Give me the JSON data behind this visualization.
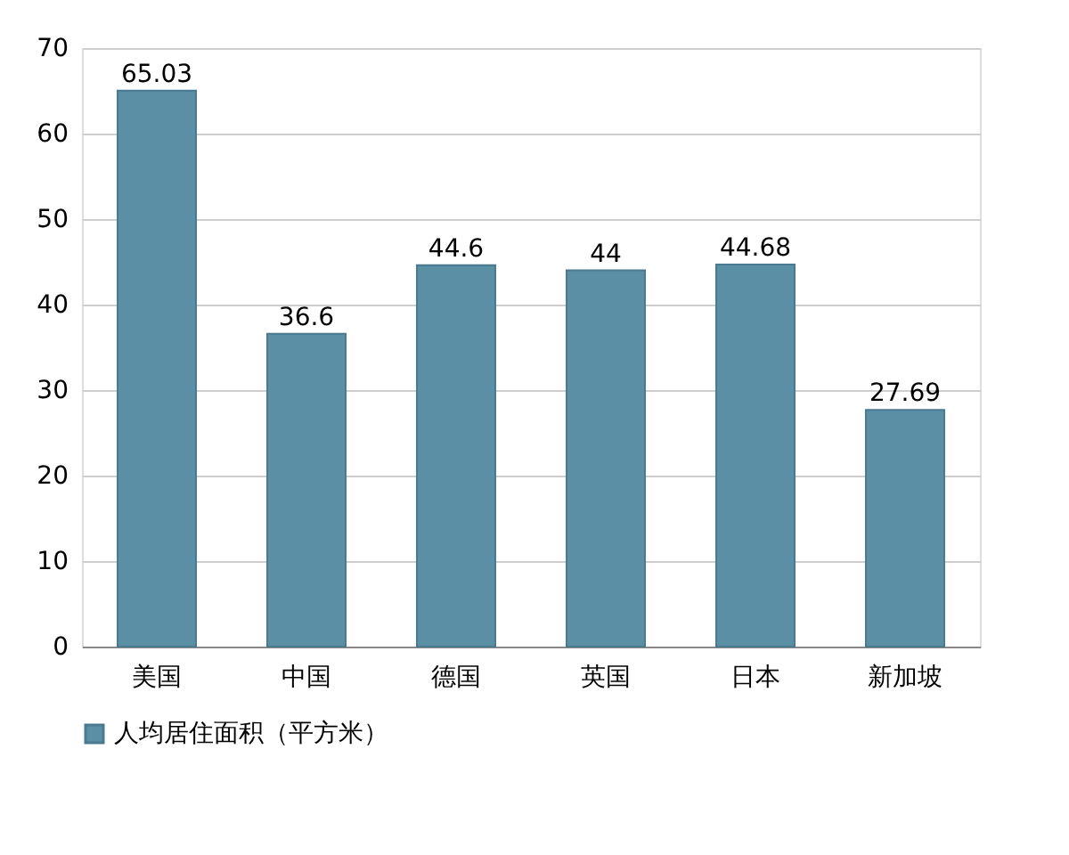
{
  "chart_data": {
    "type": "bar",
    "categories": [
      "美国",
      "中国",
      "德国",
      "英国",
      "日本",
      "新加坡"
    ],
    "series": [
      {
        "name": "人均居住面积（平方米）",
        "color": "#5b8fa6",
        "values": [
          65.03,
          36.6,
          44.6,
          44,
          44.68,
          27.69
        ]
      }
    ],
    "ylim": [
      0,
      70
    ],
    "yticks": [
      0,
      10,
      20,
      30,
      40,
      50,
      60,
      70
    ],
    "grid": "y",
    "legend": "bottom",
    "data_labels": true
  }
}
